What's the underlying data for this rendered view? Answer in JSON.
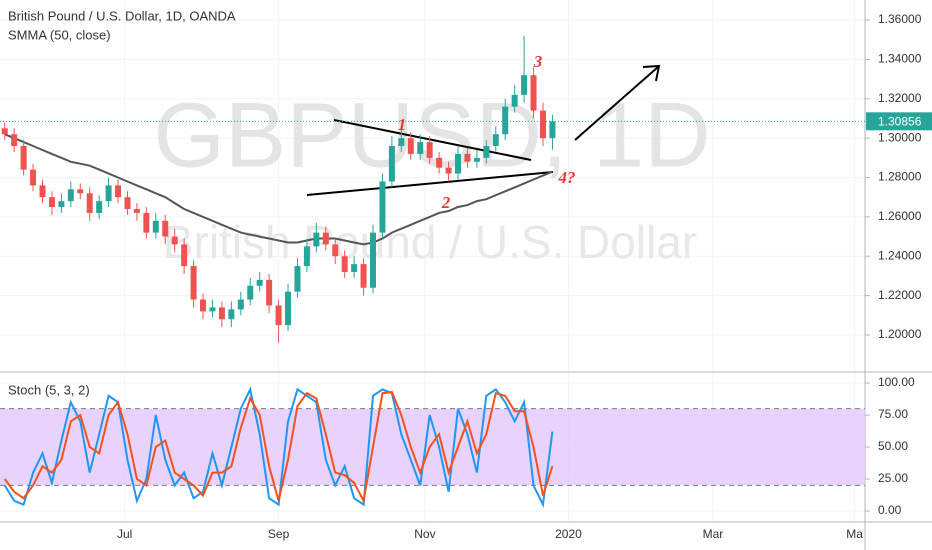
{
  "chart_data": [
    {
      "type": "candlestick",
      "title": "British Pound / U.S. Dollar, 1D, OANDA",
      "watermark": "GBPUSD, 1D",
      "watermark_subtitle": "British Pound / U.S. Dollar",
      "xlim": [
        -0.5,
        91.1
      ],
      "ylim": [
        1.1822,
        1.3702
      ],
      "yticks": [
        {
          "value": 1.2,
          "label": "1.20000"
        },
        {
          "value": 1.22,
          "label": "1.22000"
        },
        {
          "value": 1.24,
          "label": "1.24000"
        },
        {
          "value": 1.26,
          "label": "1.26000"
        },
        {
          "value": 1.28,
          "label": "1.28000"
        },
        {
          "value": 1.3,
          "label": "1.30000"
        },
        {
          "value": 1.32,
          "label": "1.32000"
        },
        {
          "value": 1.34,
          "label": "1.34000"
        },
        {
          "value": 1.36,
          "label": "1.36000"
        }
      ],
      "last_price": 1.30856,
      "up_color": "#26a69a",
      "down_color": "#ef5350",
      "open": [
        1.305,
        1.302,
        1.296,
        1.284,
        1.276,
        1.27,
        1.265,
        1.268,
        1.274,
        1.272,
        1.262,
        1.268,
        1.276,
        1.27,
        1.264,
        1.262,
        1.252,
        1.258,
        1.25,
        1.246,
        1.235,
        1.218,
        1.212,
        1.214,
        1.208,
        1.213,
        1.218,
        1.225,
        1.228,
        1.215,
        1.205,
        1.222,
        1.235,
        1.245,
        1.252,
        1.246,
        1.24,
        1.232,
        1.236,
        1.224,
        1.252,
        1.278,
        1.296,
        1.3,
        1.292,
        1.298,
        1.29,
        1.285,
        1.282,
        1.292,
        1.288,
        1.29,
        1.296,
        1.302,
        1.316,
        1.322,
        1.332,
        1.314,
        1.3
      ],
      "high": [
        1.308,
        1.305,
        1.299,
        1.287,
        1.279,
        1.273,
        1.272,
        1.278,
        1.277,
        1.275,
        1.271,
        1.28,
        1.279,
        1.273,
        1.267,
        1.265,
        1.262,
        1.261,
        1.254,
        1.249,
        1.238,
        1.221,
        1.218,
        1.217,
        1.217,
        1.222,
        1.229,
        1.232,
        1.231,
        1.218,
        1.226,
        1.239,
        1.249,
        1.257,
        1.255,
        1.249,
        1.243,
        1.24,
        1.239,
        1.256,
        1.282,
        1.301,
        1.305,
        1.303,
        1.302,
        1.301,
        1.293,
        1.288,
        1.296,
        1.295,
        1.294,
        1.299,
        1.306,
        1.32,
        1.327,
        1.352,
        1.336,
        1.318,
        1.312
      ],
      "low": [
        1.299,
        1.293,
        1.281,
        1.273,
        1.267,
        1.261,
        1.262,
        1.265,
        1.269,
        1.258,
        1.259,
        1.265,
        1.267,
        1.261,
        1.258,
        1.249,
        1.249,
        1.246,
        1.242,
        1.231,
        1.214,
        1.208,
        1.209,
        1.204,
        1.204,
        1.21,
        1.215,
        1.222,
        1.211,
        1.196,
        1.202,
        1.219,
        1.232,
        1.242,
        1.243,
        1.236,
        1.229,
        1.229,
        1.22,
        1.221,
        1.249,
        1.275,
        1.293,
        1.289,
        1.289,
        1.287,
        1.282,
        1.278,
        1.279,
        1.285,
        1.285,
        1.287,
        1.293,
        1.299,
        1.313,
        1.318,
        1.31,
        1.296,
        1.294
      ],
      "close": [
        1.302,
        1.296,
        1.284,
        1.276,
        1.27,
        1.265,
        1.268,
        1.274,
        1.272,
        1.262,
        1.268,
        1.276,
        1.27,
        1.264,
        1.262,
        1.252,
        1.258,
        1.25,
        1.246,
        1.235,
        1.218,
        1.212,
        1.214,
        1.208,
        1.213,
        1.218,
        1.225,
        1.228,
        1.215,
        1.205,
        1.222,
        1.235,
        1.245,
        1.252,
        1.246,
        1.24,
        1.232,
        1.236,
        1.224,
        1.252,
        1.278,
        1.296,
        1.3,
        1.292,
        1.298,
        1.29,
        1.285,
        1.282,
        1.292,
        1.288,
        1.29,
        1.296,
        1.302,
        1.316,
        1.322,
        1.332,
        1.314,
        1.3,
        1.30856
      ],
      "series": [
        {
          "name": "SMMA (50, close)",
          "color": "#555555",
          "values": [
            1.302,
            1.3,
            1.298,
            1.296,
            1.294,
            1.292,
            1.29,
            1.288,
            1.287,
            1.286,
            1.284,
            1.282,
            1.28,
            1.278,
            1.276,
            1.274,
            1.272,
            1.27,
            1.267,
            1.264,
            1.262,
            1.26,
            1.258,
            1.256,
            1.254,
            1.252,
            1.251,
            1.25,
            1.249,
            1.248,
            1.247,
            1.247,
            1.248,
            1.249,
            1.249,
            1.249,
            1.248,
            1.247,
            1.246,
            1.247,
            1.249,
            1.252,
            1.254,
            1.256,
            1.258,
            1.26,
            1.262,
            1.263,
            1.265,
            1.266,
            1.268,
            1.269,
            1.271,
            1.273,
            1.275,
            1.277,
            1.279,
            1.281,
            1.283
          ]
        }
      ],
      "annotations": [
        "1",
        "2",
        "3",
        "4?"
      ]
    },
    {
      "type": "line",
      "title": "Stoch (5, 3, 2)",
      "xlim": [
        -0.5,
        91.1
      ],
      "xticks": [
        {
          "value": 12.7,
          "label": "Jul"
        },
        {
          "value": 29.0,
          "label": "Sep"
        },
        {
          "value": 44.5,
          "label": "Nov"
        },
        {
          "value": 59.7,
          "label": "2020"
        },
        {
          "value": 75.0,
          "label": "Mar"
        },
        {
          "value": 90.0,
          "label": "Ma"
        }
      ],
      "ylim": [
        -8.6,
        108.6
      ],
      "yticks": [
        {
          "value": 0,
          "label": "0.00"
        },
        {
          "value": 25,
          "label": "25.00"
        },
        {
          "value": 50,
          "label": "50.00"
        },
        {
          "value": 75,
          "label": "75.00"
        },
        {
          "value": 100,
          "label": "100.00"
        }
      ],
      "band": [
        20,
        80
      ],
      "band_color": "#e1c8fb",
      "series": [
        {
          "color": "#2196f3",
          "values": [
            20,
            8,
            5,
            30,
            45,
            22,
            55,
            85,
            70,
            30,
            60,
            90,
            85,
            40,
            8,
            25,
            75,
            40,
            20,
            30,
            10,
            15,
            45,
            20,
            50,
            80,
            95,
            60,
            10,
            5,
            70,
            95,
            90,
            85,
            40,
            20,
            35,
            10,
            5,
            90,
            95,
            92,
            60,
            40,
            20,
            75,
            50,
            15,
            80,
            60,
            30,
            90,
            95,
            85,
            70,
            85,
            20,
            5,
            62
          ]
        },
        {
          "color": "#f4511e",
          "values": [
            25,
            15,
            10,
            20,
            35,
            30,
            40,
            70,
            75,
            50,
            45,
            75,
            85,
            60,
            25,
            20,
            50,
            55,
            30,
            25,
            20,
            12,
            30,
            30,
            35,
            65,
            88,
            75,
            35,
            8,
            40,
            82,
            92,
            88,
            60,
            30,
            28,
            22,
            8,
            50,
            92,
            93,
            75,
            50,
            30,
            50,
            60,
            30,
            50,
            70,
            45,
            60,
            92,
            90,
            78,
            78,
            50,
            12,
            35
          ]
        }
      ]
    }
  ]
}
